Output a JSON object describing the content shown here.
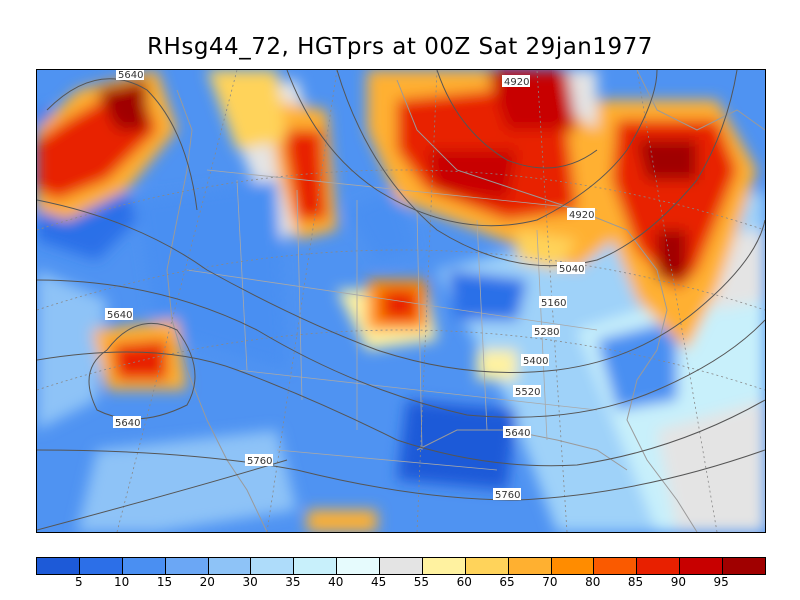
{
  "title": "RHsg44_72, HGTprs at 00Z Sat 29jan1977",
  "colorbar": {
    "colors": [
      "#1d5ad8",
      "#2c6fe8",
      "#4a8ff2",
      "#6ba7f5",
      "#8ec3f7",
      "#aedcfa",
      "#c8f0fb",
      "#e6fbfd",
      "#e4e4e4",
      "#fff2a0",
      "#ffd35a",
      "#ffb030",
      "#ff8c00",
      "#fa5a00",
      "#e82000",
      "#c80000",
      "#a00000"
    ],
    "labels": [
      "5",
      "10",
      "15",
      "20",
      "30",
      "35",
      "40",
      "45",
      "55",
      "60",
      "65",
      "70",
      "80",
      "85",
      "90",
      "95"
    ]
  },
  "contour_labels": [
    "5640",
    "4920",
    "4920",
    "5040",
    "5160",
    "5280",
    "5400",
    "5520",
    "5640",
    "5640",
    "5640",
    "5760",
    "5760"
  ]
}
